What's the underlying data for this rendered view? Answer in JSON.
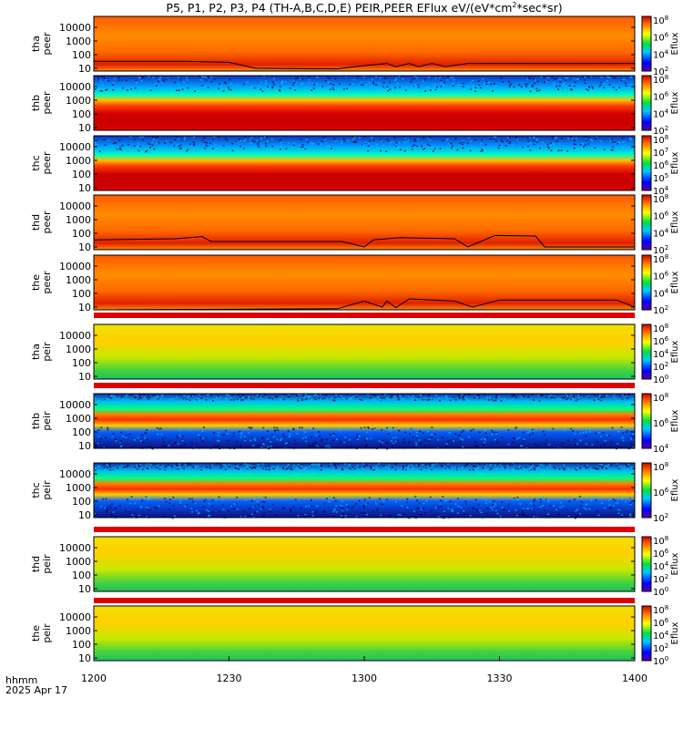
{
  "chart_data": {
    "type": "heatmap",
    "title": "P5, P1, P2, P3, P4 (TH-A,B,C,D,E) PEIR,PEER EFlux eV/(eV*cm",
    "title_sup": "2",
    "title_tail": "*sec*sr)",
    "xlabel_line1": "hhmm",
    "xlabel_line2": "2025 Apr 17",
    "x_ticks": [
      "1200",
      "1230",
      "1300",
      "1330",
      "1400"
    ],
    "x_range_minutes": [
      0,
      120
    ],
    "y_scale": "log",
    "y_ticks": [
      "10",
      "100",
      "1000",
      "10000"
    ],
    "colorbar_label": "Eflux",
    "panels": [
      {
        "label1": "tha",
        "label2": "peer",
        "theme": "warm",
        "cbar_ticks": [
          "10",
          "10",
          "10",
          "10"
        ],
        "cbar_exp": [
          "8",
          "6",
          "4",
          "2"
        ],
        "contour": [
          [
            0,
            0.82
          ],
          [
            20,
            0.82
          ],
          [
            30,
            0.84
          ],
          [
            36,
            0.95
          ],
          [
            54,
            0.96
          ],
          [
            60,
            0.9
          ],
          [
            65,
            0.86
          ],
          [
            67,
            0.92
          ],
          [
            70,
            0.86
          ],
          [
            72,
            0.92
          ],
          [
            75,
            0.86
          ],
          [
            78,
            0.92
          ],
          [
            83,
            0.86
          ],
          [
            120,
            0.86
          ]
        ]
      },
      {
        "label1": "thb",
        "label2": "peer",
        "theme": "band",
        "cbar_ticks": [
          "10",
          "10",
          "10",
          "10"
        ],
        "cbar_exp": [
          "8",
          "6",
          "4",
          "2"
        ]
      },
      {
        "label1": "thc",
        "label2": "peer",
        "theme": "band",
        "cbar_ticks": [
          "10",
          "10",
          "10",
          "10",
          "10"
        ],
        "cbar_exp": [
          "8",
          "7",
          "6",
          "5",
          "4"
        ]
      },
      {
        "label1": "thd",
        "label2": "peer",
        "theme": "warm",
        "cbar_ticks": [
          "10",
          "10",
          "10",
          "10"
        ],
        "cbar_exp": [
          "8",
          "6",
          "4",
          "2"
        ],
        "contour": [
          [
            0,
            0.82
          ],
          [
            18,
            0.8
          ],
          [
            24,
            0.76
          ],
          [
            26,
            0.85
          ],
          [
            55,
            0.85
          ],
          [
            60,
            0.95
          ],
          [
            62,
            0.82
          ],
          [
            68,
            0.78
          ],
          [
            80,
            0.8
          ],
          [
            83,
            0.95
          ],
          [
            89,
            0.74
          ],
          [
            98,
            0.75
          ],
          [
            100,
            0.95
          ],
          [
            120,
            0.95
          ]
        ]
      },
      {
        "label1": "the",
        "label2": "peer",
        "theme": "warm",
        "cbar_ticks": [
          "10",
          "10",
          "10",
          "10"
        ],
        "cbar_exp": [
          "8",
          "6",
          "4",
          "2"
        ],
        "contour": [
          [
            0,
            1.0
          ],
          [
            54,
            0.98
          ],
          [
            60,
            0.84
          ],
          [
            64,
            0.95
          ],
          [
            65,
            0.84
          ],
          [
            67,
            0.96
          ],
          [
            70,
            0.8
          ],
          [
            80,
            0.84
          ],
          [
            84,
            0.95
          ],
          [
            90,
            0.82
          ],
          [
            116,
            0.82
          ],
          [
            120,
            0.95
          ]
        ]
      },
      {
        "label1": "tha",
        "label2": "peir",
        "theme": "green",
        "cbar_ticks": [
          "10",
          "10",
          "10",
          "10",
          "10"
        ],
        "cbar_exp": [
          "8",
          "6",
          "4",
          "2",
          "0"
        ]
      },
      {
        "label1": "thb",
        "label2": "peir",
        "theme": "ionband",
        "cbar_ticks": [
          "10",
          "10",
          "10"
        ],
        "cbar_exp": [
          "8",
          "6",
          "4"
        ]
      },
      {
        "label1": "thc",
        "label2": "peir",
        "theme": "ionband",
        "cbar_ticks": [
          "10",
          "10",
          "10"
        ],
        "cbar_exp": [
          "8",
          "6",
          "2"
        ]
      },
      {
        "label1": "thd",
        "label2": "peir",
        "theme": "green",
        "cbar_ticks": [
          "10",
          "10",
          "10",
          "10",
          "10"
        ],
        "cbar_exp": [
          "8",
          "6",
          "4",
          "2",
          "0"
        ]
      },
      {
        "label1": "the",
        "label2": "peir",
        "theme": "green",
        "cbar_ticks": [
          "10",
          "10",
          "10",
          "10",
          "10"
        ],
        "cbar_exp": [
          "8",
          "6",
          "4",
          "2",
          "0"
        ]
      }
    ]
  }
}
